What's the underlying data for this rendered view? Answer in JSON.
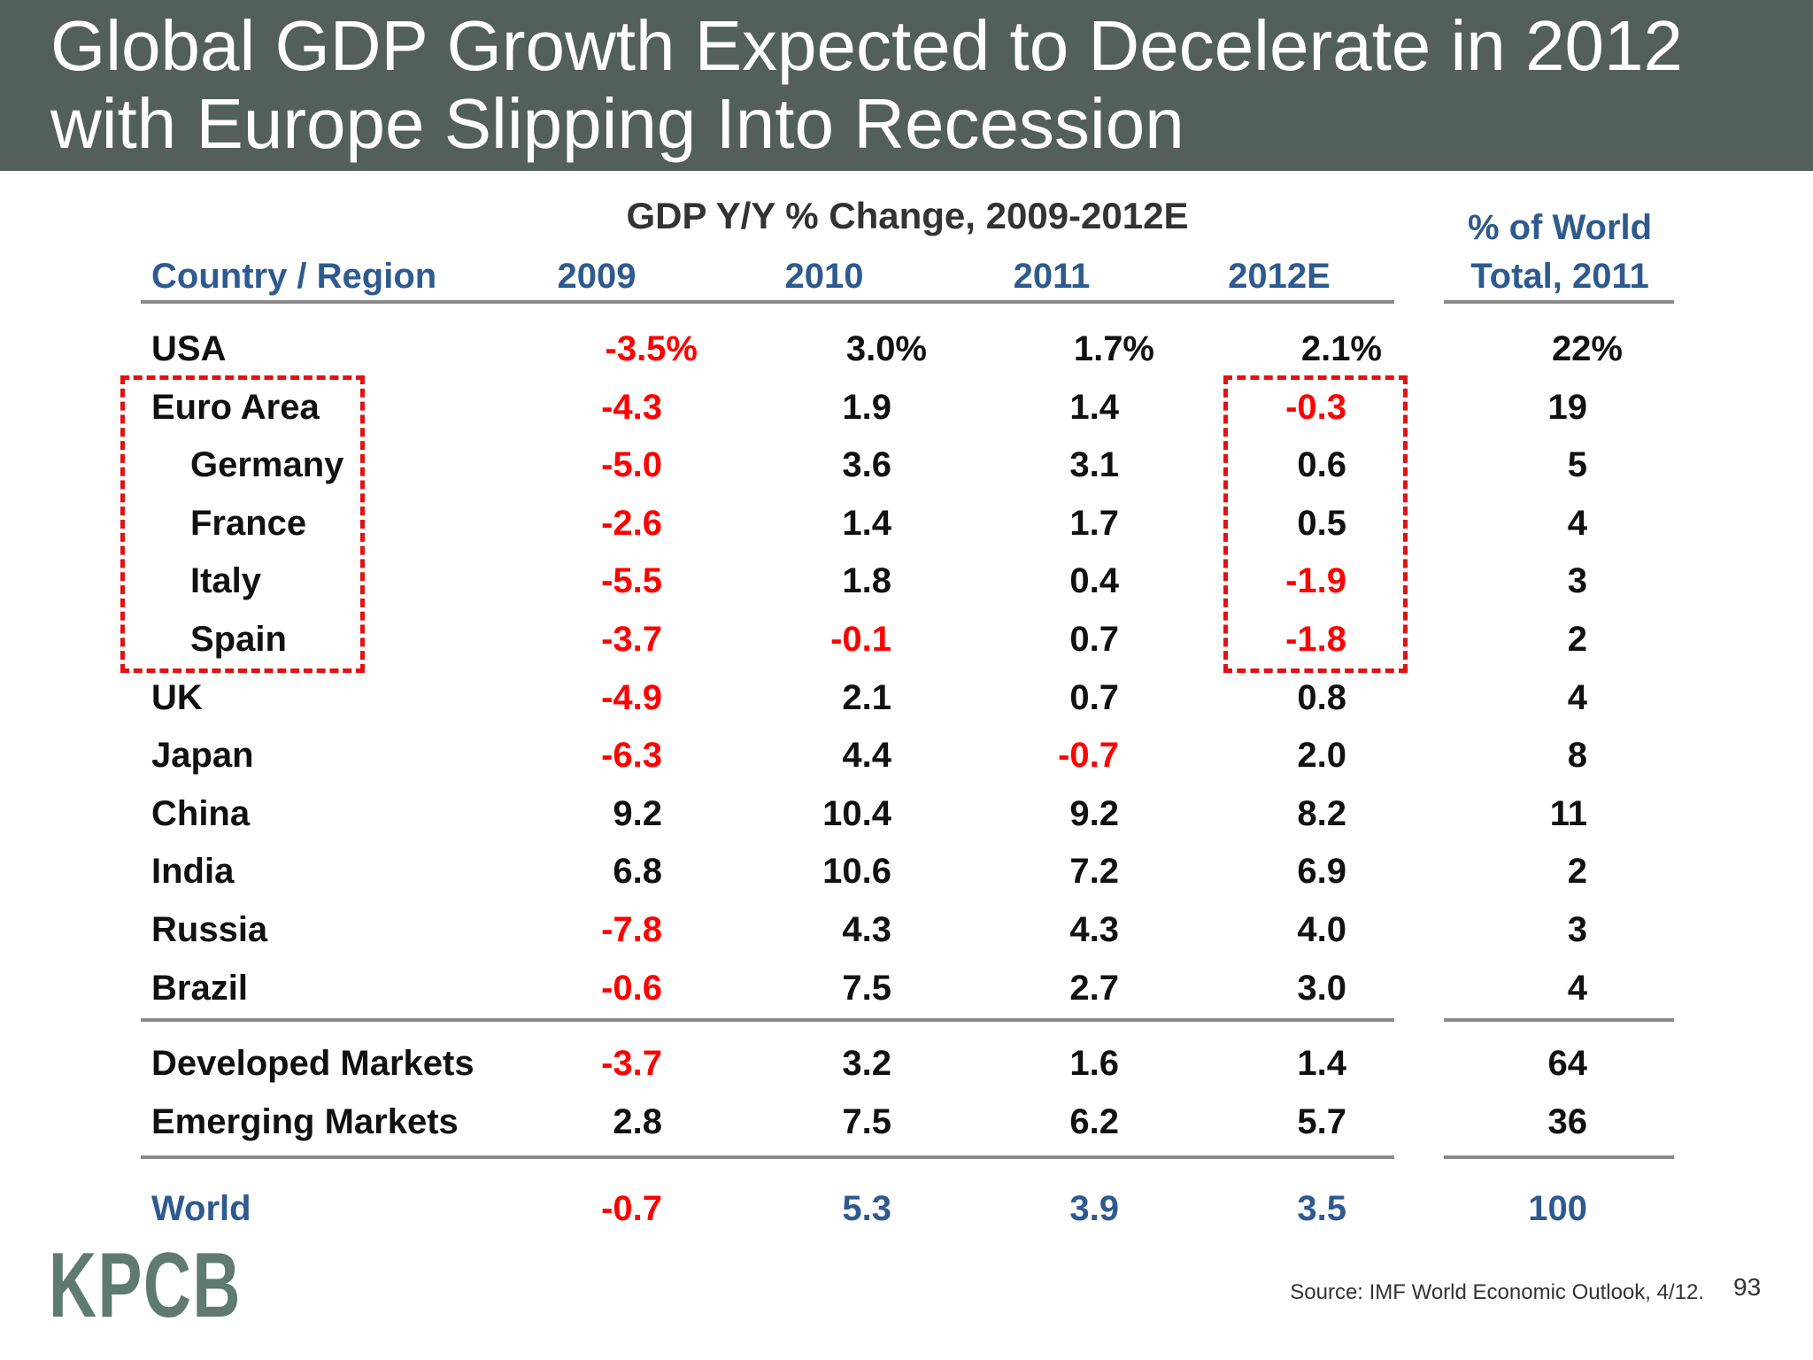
{
  "title": {
    "line1": "Global GDP Growth Expected to Decelerate in 2012",
    "line2": "with Europe Slipping Into Recession"
  },
  "subheading": "GDP Y/Y % Change, 2009-2012E",
  "columns": {
    "country": "Country / Region",
    "years": [
      "2009",
      "2010",
      "2011",
      "2012E"
    ],
    "share_line1": "% of World",
    "share_line2": "Total, 2011"
  },
  "rows": [
    {
      "name": "USA",
      "indent": false,
      "values": [
        "-3.5%",
        "3.0%",
        "1.7%",
        "2.1%"
      ],
      "share": "22%"
    },
    {
      "name": "Euro Area",
      "indent": false,
      "values": [
        "-4.3",
        "1.9",
        "1.4",
        "-0.3"
      ],
      "share": "19"
    },
    {
      "name": "Germany",
      "indent": true,
      "values": [
        "-5.0",
        "3.6",
        "3.1",
        "0.6"
      ],
      "share": "5"
    },
    {
      "name": "France",
      "indent": true,
      "values": [
        "-2.6",
        "1.4",
        "1.7",
        "0.5"
      ],
      "share": "4"
    },
    {
      "name": "Italy",
      "indent": true,
      "values": [
        "-5.5",
        "1.8",
        "0.4",
        "-1.9"
      ],
      "share": "3"
    },
    {
      "name": "Spain",
      "indent": true,
      "values": [
        "-3.7",
        "-0.1",
        "0.7",
        "-1.8"
      ],
      "share": "2"
    },
    {
      "name": "UK",
      "indent": false,
      "values": [
        "-4.9",
        "2.1",
        "0.7",
        "0.8"
      ],
      "share": "4"
    },
    {
      "name": "Japan",
      "indent": false,
      "values": [
        "-6.3",
        "4.4",
        "-0.7",
        "2.0"
      ],
      "share": "8"
    },
    {
      "name": "China",
      "indent": false,
      "values": [
        "9.2",
        "10.4",
        "9.2",
        "8.2"
      ],
      "share": "11"
    },
    {
      "name": "India",
      "indent": false,
      "values": [
        "6.8",
        "10.6",
        "7.2",
        "6.9"
      ],
      "share": "2"
    },
    {
      "name": "Russia",
      "indent": false,
      "values": [
        "-7.8",
        "4.3",
        "4.3",
        "4.0"
      ],
      "share": "3"
    },
    {
      "name": "Brazil",
      "indent": false,
      "values": [
        "-0.6",
        "7.5",
        "2.7",
        "3.0"
      ],
      "share": "4"
    }
  ],
  "aggregates": [
    {
      "name": "Developed Markets",
      "values": [
        "-3.7",
        "3.2",
        "1.6",
        "1.4"
      ],
      "share": "64"
    },
    {
      "name": "Emerging Markets",
      "values": [
        "2.8",
        "7.5",
        "6.2",
        "5.7"
      ],
      "share": "36"
    }
  ],
  "world": {
    "name": "World",
    "values": [
      "-0.7",
      "5.3",
      "3.9",
      "3.5"
    ],
    "share": "100"
  },
  "highlight_color": "#e31212",
  "negative_color": "#ff0000",
  "header_color": "#526059",
  "accent_color": "#2e5a8f",
  "logo": "KPCB",
  "source": "Source: IMF World Economic Outlook, 4/12.",
  "page_number": "93"
}
